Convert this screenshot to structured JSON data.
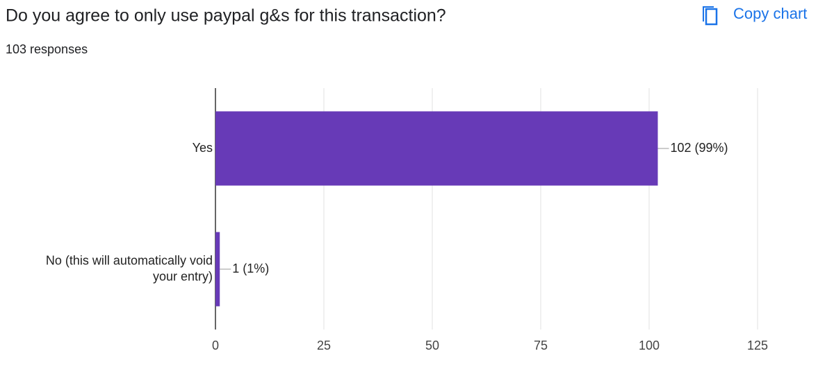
{
  "toolbar": {
    "copy_button": "Copy chart"
  },
  "chart_data": {
    "type": "bar",
    "orientation": "horizontal",
    "title": "Do you agree to only use paypal g&s for this transaction?",
    "subtitle": "103 responses",
    "categories": [
      "Yes",
      "No (this will automatically void your entry)"
    ],
    "values": [
      102,
      1
    ],
    "value_labels": [
      "102 (99%)",
      "1 (1%)"
    ],
    "color": "#673ab7",
    "xlim": [
      0,
      125
    ],
    "xticks": [
      0,
      25,
      50,
      75,
      100,
      125
    ],
    "grid": true
  }
}
